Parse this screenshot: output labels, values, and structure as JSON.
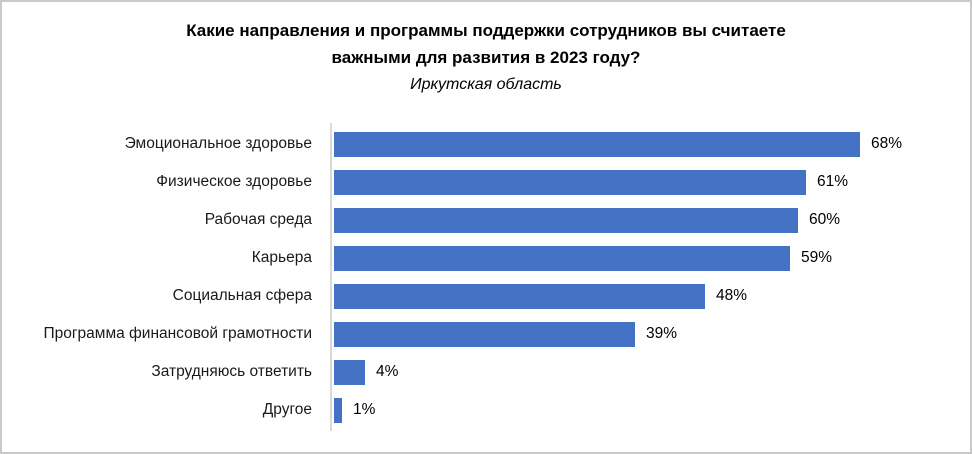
{
  "chart": {
    "title_line1": "Какие направления и программы поддержки сотрудников вы считаете",
    "title_line2": "важными для развития в 2023 году?",
    "subtitle": "Иркутская область"
  },
  "chart_data": {
    "type": "bar",
    "orientation": "horizontal",
    "title": "Какие направления и программы поддержки сотрудников вы считаете важными для развития в 2023 году?",
    "subtitle": "Иркутская область",
    "categories": [
      "Эмоциональное здоровье",
      "Физическое здоровье",
      "Рабочая среда",
      "Карьера",
      "Социальная сфера",
      "Программа финансовой грамотности",
      "Затрудняюсь ответить",
      "Другое"
    ],
    "values": [
      68,
      61,
      60,
      59,
      48,
      39,
      4,
      1
    ],
    "value_labels": [
      "68%",
      "61%",
      "60%",
      "59%",
      "48%",
      "39%",
      "4%",
      "1%"
    ],
    "xlabel": "",
    "ylabel": "",
    "xlim": [
      0,
      80
    ],
    "grid": false,
    "legend": false,
    "data_labels": "outside-end",
    "bar_color": "#4472C4",
    "axis_line_color": "#D9D9D9"
  }
}
